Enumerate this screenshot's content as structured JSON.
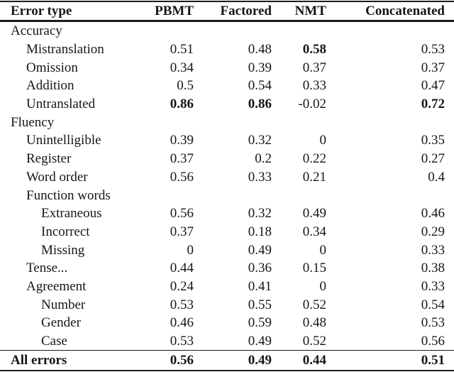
{
  "table": {
    "columns": [
      "Error type",
      "PBMT",
      "Factored",
      "NMT",
      "Concatenated"
    ],
    "rows": [
      {
        "label": "Accuracy",
        "indent": 0,
        "values": [
          "",
          "",
          "",
          ""
        ]
      },
      {
        "label": "Mistranslation",
        "indent": 1,
        "values": [
          "0.51",
          "0.48",
          "0.58",
          "0.53"
        ],
        "bold_values": [
          2
        ]
      },
      {
        "label": "Omission",
        "indent": 1,
        "values": [
          "0.34",
          "0.39",
          "0.37",
          "0.37"
        ]
      },
      {
        "label": "Addition",
        "indent": 1,
        "values": [
          "0.5",
          "0.54",
          "0.33",
          "0.47"
        ]
      },
      {
        "label": "Untranslated",
        "indent": 1,
        "values": [
          "0.86",
          "0.86",
          "-0.02",
          "0.72"
        ],
        "bold_values": [
          0,
          1,
          3
        ]
      },
      {
        "label": "Fluency",
        "indent": 0,
        "values": [
          "",
          "",
          "",
          ""
        ]
      },
      {
        "label": "Unintelligible",
        "indent": 1,
        "values": [
          "0.39",
          "0.32",
          "0",
          "0.35"
        ]
      },
      {
        "label": "Register",
        "indent": 1,
        "values": [
          "0.37",
          "0.2",
          "0.22",
          "0.27"
        ]
      },
      {
        "label": "Word order",
        "indent": 1,
        "values": [
          "0.56",
          "0.33",
          "0.21",
          "0.4"
        ]
      },
      {
        "label": "Function words",
        "indent": 1,
        "values": [
          "",
          "",
          "",
          ""
        ]
      },
      {
        "label": "Extraneous",
        "indent": 2,
        "values": [
          "0.56",
          "0.32",
          "0.49",
          "0.46"
        ]
      },
      {
        "label": "Incorrect",
        "indent": 2,
        "values": [
          "0.37",
          "0.18",
          "0.34",
          "0.29"
        ]
      },
      {
        "label": "Missing",
        "indent": 2,
        "values": [
          "0",
          "0.49",
          "0",
          "0.33"
        ]
      },
      {
        "label": "Tense...",
        "indent": 1,
        "values": [
          "0.44",
          "0.36",
          "0.15",
          "0.38"
        ]
      },
      {
        "label": "Agreement",
        "indent": 1,
        "values": [
          "0.24",
          "0.41",
          "0",
          "0.33"
        ]
      },
      {
        "label": "Number",
        "indent": 2,
        "values": [
          "0.53",
          "0.55",
          "0.52",
          "0.54"
        ]
      },
      {
        "label": "Gender",
        "indent": 2,
        "values": [
          "0.46",
          "0.59",
          "0.48",
          "0.53"
        ]
      },
      {
        "label": "Case",
        "indent": 2,
        "values": [
          "0.53",
          "0.49",
          "0.52",
          "0.56"
        ]
      }
    ],
    "total_row": {
      "label": "All errors",
      "values": [
        "0.56",
        "0.49",
        "0.44",
        "0.51"
      ]
    }
  },
  "colors": {
    "background": "#ffffff",
    "text": "#161616",
    "rule": "#1b1b1b"
  }
}
